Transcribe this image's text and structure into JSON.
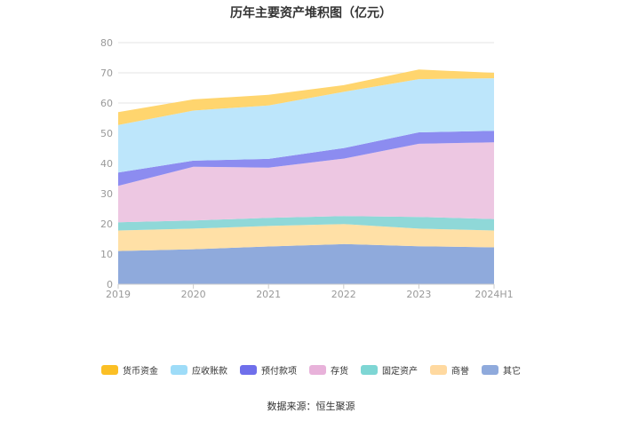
{
  "chart_data": {
    "type": "area",
    "stacked": true,
    "title": "历年主要资产堆积图（亿元）",
    "categories": [
      "2019",
      "2020",
      "2021",
      "2022",
      "2023",
      "2024H1"
    ],
    "ylim": [
      0,
      80
    ],
    "yticks": [
      0,
      10,
      20,
      30,
      40,
      50,
      60,
      70,
      80
    ],
    "grid": true,
    "legend_position": "bottom",
    "series": [
      {
        "name": "其它",
        "color": "#8FAADC",
        "values": [
          11.0,
          11.6,
          12.5,
          13.3,
          12.6,
          12.2
        ]
      },
      {
        "name": "商誉",
        "color": "#FFE0A6",
        "values": [
          6.8,
          6.8,
          6.8,
          6.6,
          5.8,
          5.6
        ]
      },
      {
        "name": "固定资产",
        "color": "#8FD8D8",
        "values": [
          2.7,
          2.7,
          2.7,
          2.7,
          3.9,
          3.8
        ]
      },
      {
        "name": "存货",
        "color": "#EDC7E2",
        "values": [
          12.1,
          17.8,
          16.6,
          19.0,
          24.2,
          25.4
        ]
      },
      {
        "name": "预付款项",
        "color": "#8C8CF0",
        "values": [
          4.4,
          2.0,
          2.9,
          3.5,
          3.8,
          3.8
        ]
      },
      {
        "name": "应收账款",
        "color": "#BDE6FB",
        "values": [
          15.7,
          16.6,
          17.7,
          18.6,
          17.6,
          17.4
        ]
      },
      {
        "name": "货币资金",
        "color": "#FFD56E",
        "values": [
          4.3,
          3.7,
          3.5,
          2.2,
          3.2,
          1.8
        ]
      }
    ],
    "legend_order": [
      "货币资金",
      "应收账款",
      "预付款项",
      "存货",
      "固定资产",
      "商誉",
      "其它"
    ],
    "legend_colors": {
      "货币资金": "#FBBF25",
      "应收账款": "#9EDCF8",
      "预付款项": "#6F6FEB",
      "存货": "#E8B2DA",
      "固定资产": "#7ED6D4",
      "商誉": "#FFD9A0",
      "其它": "#8FAADC"
    }
  },
  "source": "数据来源：恒生聚源"
}
